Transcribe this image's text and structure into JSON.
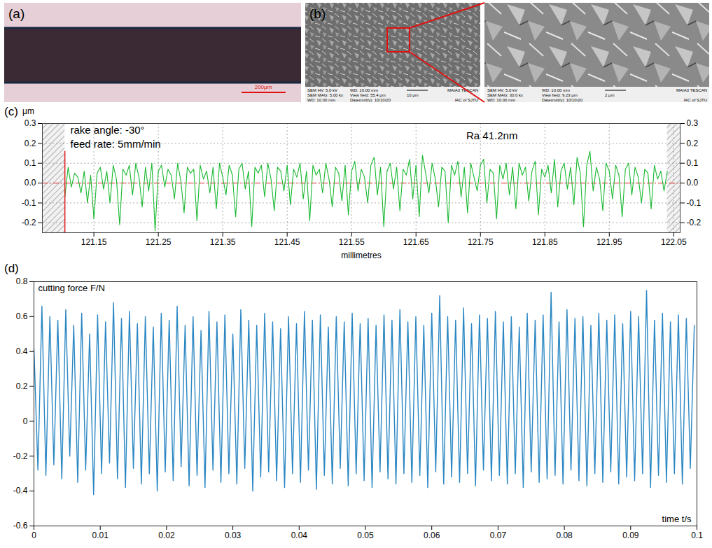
{
  "panels": {
    "a": {
      "label": "(a)",
      "scale_bar": "200μm"
    },
    "b": {
      "label": "(b)",
      "images": [
        {
          "rows": [
            [
              "SEM HV: 5.0 kV",
              "WD: 10.00 mm"
            ],
            [
              "SEM MAG: 5.00 kx",
              "View field: 55.4 μm",
              "10 μm"
            ],
            [
              "WD: 10.00 mm",
              "Date(m/d/y): 10/10/20"
            ]
          ],
          "brand": [
            "MAIA3 TESCAN",
            "IAC of SJTU"
          ]
        },
        {
          "rows": [
            [
              "SEM HV: 5.0 kV",
              "WD: 10.00 mm"
            ],
            [
              "SEM MAG: 30.0 kx",
              "View field: 9.23 μm",
              "2 μm"
            ],
            [
              "WD: 10.00 mm",
              "Date(m/d/y): 10/10/20"
            ]
          ],
          "brand": [
            "MAIA3 TESCAN",
            "IAC of SJTU"
          ]
        }
      ]
    }
  },
  "chart_data": [
    {
      "type": "line",
      "label": "(c)",
      "y_label": "μm",
      "x_label": "millimetres",
      "annotations": [
        "rake angle: -30°",
        "feed rate: 5mm/min",
        "Ra 41.2nm"
      ],
      "color": "#19b830",
      "grid": true,
      "xlim": [
        121.07,
        122.06
      ],
      "xticks": [
        121.15,
        121.25,
        121.35,
        121.45,
        121.55,
        121.65,
        121.75,
        121.85,
        121.95,
        122.05
      ],
      "ylim": [
        -0.25,
        0.3
      ],
      "yticks": [
        -0.2,
        -0.1,
        {
          "value": 0,
          "label": "0.0"
        },
        0.1,
        0.2,
        0.3
      ],
      "x": [
        121.105,
        121.11,
        121.115,
        121.12,
        121.125,
        121.13,
        121.135,
        121.14,
        121.145,
        121.15,
        121.155,
        121.16,
        121.165,
        121.17,
        121.175,
        121.18,
        121.185,
        121.19,
        121.195,
        121.2,
        121.205,
        121.21,
        121.215,
        121.22,
        121.225,
        121.23,
        121.235,
        121.24,
        121.245,
        121.25,
        121.255,
        121.26,
        121.265,
        121.27,
        121.275,
        121.28,
        121.285,
        121.29,
        121.295,
        121.3,
        121.305,
        121.31,
        121.315,
        121.32,
        121.325,
        121.33,
        121.335,
        121.34,
        121.345,
        121.35,
        121.355,
        121.36,
        121.365,
        121.37,
        121.375,
        121.38,
        121.385,
        121.39,
        121.395,
        121.4,
        121.405,
        121.41,
        121.415,
        121.42,
        121.425,
        121.43,
        121.435,
        121.44,
        121.445,
        121.45,
        121.455,
        121.46,
        121.465,
        121.47,
        121.475,
        121.48,
        121.485,
        121.49,
        121.495,
        121.5,
        121.505,
        121.51,
        121.515,
        121.52,
        121.525,
        121.53,
        121.535,
        121.54,
        121.545,
        121.55,
        121.555,
        121.56,
        121.565,
        121.57,
        121.575,
        121.58,
        121.585,
        121.59,
        121.595,
        121.6,
        121.605,
        121.61,
        121.615,
        121.62,
        121.625,
        121.63,
        121.635,
        121.64,
        121.645,
        121.65,
        121.655,
        121.66,
        121.665,
        121.67,
        121.675,
        121.68,
        121.685,
        121.69,
        121.695,
        121.7,
        121.705,
        121.71,
        121.715,
        121.72,
        121.725,
        121.73,
        121.735,
        121.74,
        121.745,
        121.75,
        121.755,
        121.76,
        121.765,
        121.77,
        121.775,
        121.78,
        121.785,
        121.79,
        121.795,
        121.8,
        121.805,
        121.81,
        121.815,
        121.82,
        121.825,
        121.83,
        121.835,
        121.84,
        121.845,
        121.85,
        121.855,
        121.86,
        121.865,
        121.87,
        121.875,
        121.88,
        121.885,
        121.89,
        121.895,
        121.9,
        121.905,
        121.91,
        121.915,
        121.92,
        121.925,
        121.93,
        121.935,
        121.94,
        121.945,
        121.95,
        121.955,
        121.96,
        121.965,
        121.97,
        121.975,
        121.98,
        121.985,
        121.99,
        121.995,
        122,
        122.005,
        122.01,
        122.015,
        122.02,
        122.025,
        122.03,
        122.035,
        122.04
      ],
      "values": [
        -0.07,
        0.08,
        -0.02,
        0.05,
        0.03,
        -0.05,
        0.06,
        -0.1,
        0.04,
        -0.18,
        0.05,
        0.08,
        -0.03,
        0.06,
        -0.1,
        0.09,
        0.02,
        -0.21,
        0.07,
        0.04,
        0.09,
        -0.06,
        0.1,
        0.03,
        -0.12,
        0.08,
        -0.04,
        0.1,
        -0.24,
        0.06,
        0.09,
        -0.02,
        0.07,
        0.04,
        -0.08,
        0.1,
        0.01,
        -0.15,
        0.08,
        0.05,
        0.07,
        -0.19,
        0.09,
        0.02,
        0.06,
        -0.05,
        0.08,
        -0.13,
        0.1,
        0.03,
        -0.06,
        0.09,
        0.04,
        -0.17,
        0.07,
        0.1,
        -0.03,
        0.06,
        -0.22,
        0.08,
        0.05,
        0.09,
        -0.07,
        0.1,
        0.02,
        -0.14,
        0.08,
        0.06,
        -0.04,
        0.09,
        -0.11,
        0.07,
        0.03,
        0.1,
        -0.08,
        0.06,
        -0.19,
        0.09,
        0.04,
        0.07,
        -0.05,
        0.1,
        0.02,
        -0.12,
        0.08,
        0.05,
        -0.09,
        0.09,
        -0.16,
        0.06,
        0.11,
        -0.04,
        0.07,
        0.03,
        -0.1,
        0.09,
        0.13,
        -0.06,
        0.08,
        -0.22,
        0.06,
        0.1,
        -0.03,
        0.08,
        -0.14,
        0.07,
        0.04,
        0.12,
        -0.08,
        0.09,
        -0.17,
        0.14,
        0.05,
        -0.05,
        0.1,
        0.02,
        -0.12,
        0.08,
        0.06,
        -0.2,
        0.09,
        0.04,
        0.11,
        -0.07,
        0.08,
        -0.15,
        0.1,
        0.03,
        -0.04,
        0.09,
        0.12,
        -0.1,
        0.07,
        0.05,
        -0.18,
        0.09,
        0.02,
        0.1,
        -0.06,
        0.08,
        -0.13,
        0.1,
        0.04,
        0.08,
        -0.09,
        0.06,
        0.11,
        -0.16,
        0.07,
        0.03,
        0.09,
        -0.05,
        0.12,
        -0.12,
        0.06,
        0.1,
        -0.03,
        0.08,
        -0.11,
        0.13,
        0.05,
        -0.22,
        0.09,
        0.16,
        -0.04,
        0.08,
        0.02,
        -0.14,
        0.1,
        0.06,
        -0.08,
        0.09,
        0.04,
        -0.17,
        0.07,
        0.1,
        -0.06,
        0.08,
        0.03,
        -0.1,
        0.07,
        0.05,
        -0.13,
        0.09,
        0.02,
        0.06,
        -0.04,
        0.06
      ]
    },
    {
      "type": "line",
      "label": "(d)",
      "annotations": [
        "cutting force F/N",
        "time t/s"
      ],
      "color": "#2b87c3",
      "grid": false,
      "xlim": [
        0,
        0.1
      ],
      "xticks": [
        0,
        0.01,
        0.02,
        0.03,
        0.04,
        0.05,
        0.06,
        0.07,
        0.08,
        0.09,
        0.1
      ],
      "ylim": [
        -0.6,
        0.8
      ],
      "yticks": [
        -0.6,
        -0.4,
        -0.2,
        0,
        0.2,
        0.4,
        0.6,
        0.8
      ],
      "x": [
        0,
        0.0006,
        0.0012,
        0.0018,
        0.0024,
        0.003,
        0.0036,
        0.0042,
        0.0048,
        0.0054,
        0.006,
        0.0066,
        0.0072,
        0.0078,
        0.0084,
        0.009,
        0.0096,
        0.0102,
        0.0108,
        0.0114,
        0.012,
        0.0126,
        0.0132,
        0.0138,
        0.0144,
        0.015,
        0.0156,
        0.0162,
        0.0168,
        0.0174,
        0.018,
        0.0186,
        0.0192,
        0.0198,
        0.0204,
        0.021,
        0.0216,
        0.0222,
        0.0228,
        0.0234,
        0.024,
        0.0246,
        0.0252,
        0.0258,
        0.0264,
        0.027,
        0.0276,
        0.0282,
        0.0288,
        0.0294,
        0.03,
        0.0306,
        0.0312,
        0.0318,
        0.0324,
        0.033,
        0.0336,
        0.0342,
        0.0348,
        0.0354,
        0.036,
        0.0366,
        0.0372,
        0.0378,
        0.0384,
        0.039,
        0.0396,
        0.0402,
        0.0408,
        0.0414,
        0.042,
        0.0426,
        0.0432,
        0.0438,
        0.0444,
        0.045,
        0.0456,
        0.0462,
        0.0468,
        0.0474,
        0.048,
        0.0486,
        0.0492,
        0.0498,
        0.0504,
        0.051,
        0.0516,
        0.0522,
        0.0528,
        0.0534,
        0.054,
        0.0546,
        0.0552,
        0.0558,
        0.0564,
        0.057,
        0.0576,
        0.0582,
        0.0588,
        0.0594,
        0.06,
        0.0606,
        0.0612,
        0.0618,
        0.0624,
        0.063,
        0.0636,
        0.0642,
        0.0648,
        0.0654,
        0.066,
        0.0666,
        0.0672,
        0.0678,
        0.0684,
        0.069,
        0.0696,
        0.0702,
        0.0708,
        0.0714,
        0.072,
        0.0726,
        0.0732,
        0.0738,
        0.0744,
        0.075,
        0.0756,
        0.0762,
        0.0768,
        0.0774,
        0.078,
        0.0786,
        0.0792,
        0.0798,
        0.0804,
        0.081,
        0.0816,
        0.0822,
        0.0828,
        0.0834,
        0.084,
        0.0846,
        0.0852,
        0.0858,
        0.0864,
        0.087,
        0.0876,
        0.0882,
        0.0888,
        0.0894,
        0.09,
        0.0906,
        0.0912,
        0.0918,
        0.0924,
        0.093,
        0.0936,
        0.0942,
        0.0948,
        0.0954,
        0.096,
        0.0966,
        0.0972,
        0.0978,
        0.0984,
        0.099,
        0.0996
      ],
      "values": [
        0.42,
        -0.28,
        0.66,
        -0.31,
        0.6,
        -0.25,
        0.58,
        -0.33,
        0.64,
        -0.2,
        0.55,
        -0.35,
        0.62,
        -0.28,
        0.5,
        -0.42,
        0.61,
        -0.3,
        0.57,
        -0.24,
        0.68,
        -0.33,
        0.59,
        -0.38,
        0.63,
        -0.27,
        0.56,
        -0.36,
        0.6,
        -0.3,
        0.54,
        -0.4,
        0.62,
        -0.29,
        0.58,
        -0.34,
        0.66,
        -0.26,
        0.55,
        -0.37,
        0.6,
        -0.31,
        0.52,
        -0.38,
        0.63,
        -0.28,
        0.57,
        -0.35,
        0.61,
        -0.3,
        0.5,
        -0.36,
        0.64,
        -0.27,
        0.58,
        -0.4,
        0.55,
        -0.32,
        0.62,
        -0.29,
        0.57,
        -0.34,
        0.53,
        -0.38,
        0.6,
        -0.3,
        0.56,
        -0.35,
        0.63,
        -0.28,
        0.58,
        -0.39,
        0.61,
        -0.31,
        0.54,
        -0.36,
        0.6,
        -0.27,
        0.57,
        -0.37,
        0.62,
        -0.3,
        0.56,
        -0.34,
        0.59,
        -0.38,
        0.55,
        -0.29,
        0.61,
        -0.33,
        0.58,
        -0.36,
        0.64,
        -0.3,
        0.57,
        -0.35,
        0.6,
        -0.31,
        0.55,
        -0.38,
        0.62,
        -0.29,
        0.72,
        -0.36,
        0.6,
        -0.32,
        0.58,
        -0.35,
        0.65,
        -0.3,
        0.56,
        -0.37,
        0.61,
        -0.28,
        0.59,
        -0.34,
        0.63,
        -0.31,
        0.57,
        -0.36,
        0.6,
        -0.3,
        0.54,
        -0.38,
        0.62,
        -0.29,
        0.58,
        -0.35,
        0.61,
        -0.33,
        0.74,
        -0.31,
        0.57,
        -0.36,
        0.64,
        -0.28,
        0.59,
        -0.34,
        0.6,
        -0.37,
        0.55,
        -0.3,
        0.62,
        -0.35,
        0.58,
        -0.29,
        0.61,
        -0.36,
        0.56,
        -0.32,
        0.63,
        -0.34,
        0.6,
        -0.3,
        0.75,
        -0.38,
        0.58,
        -0.31,
        0.62,
        -0.35,
        0.57,
        -0.3,
        0.61,
        -0.36,
        0.59,
        -0.27,
        0.55
      ]
    }
  ]
}
